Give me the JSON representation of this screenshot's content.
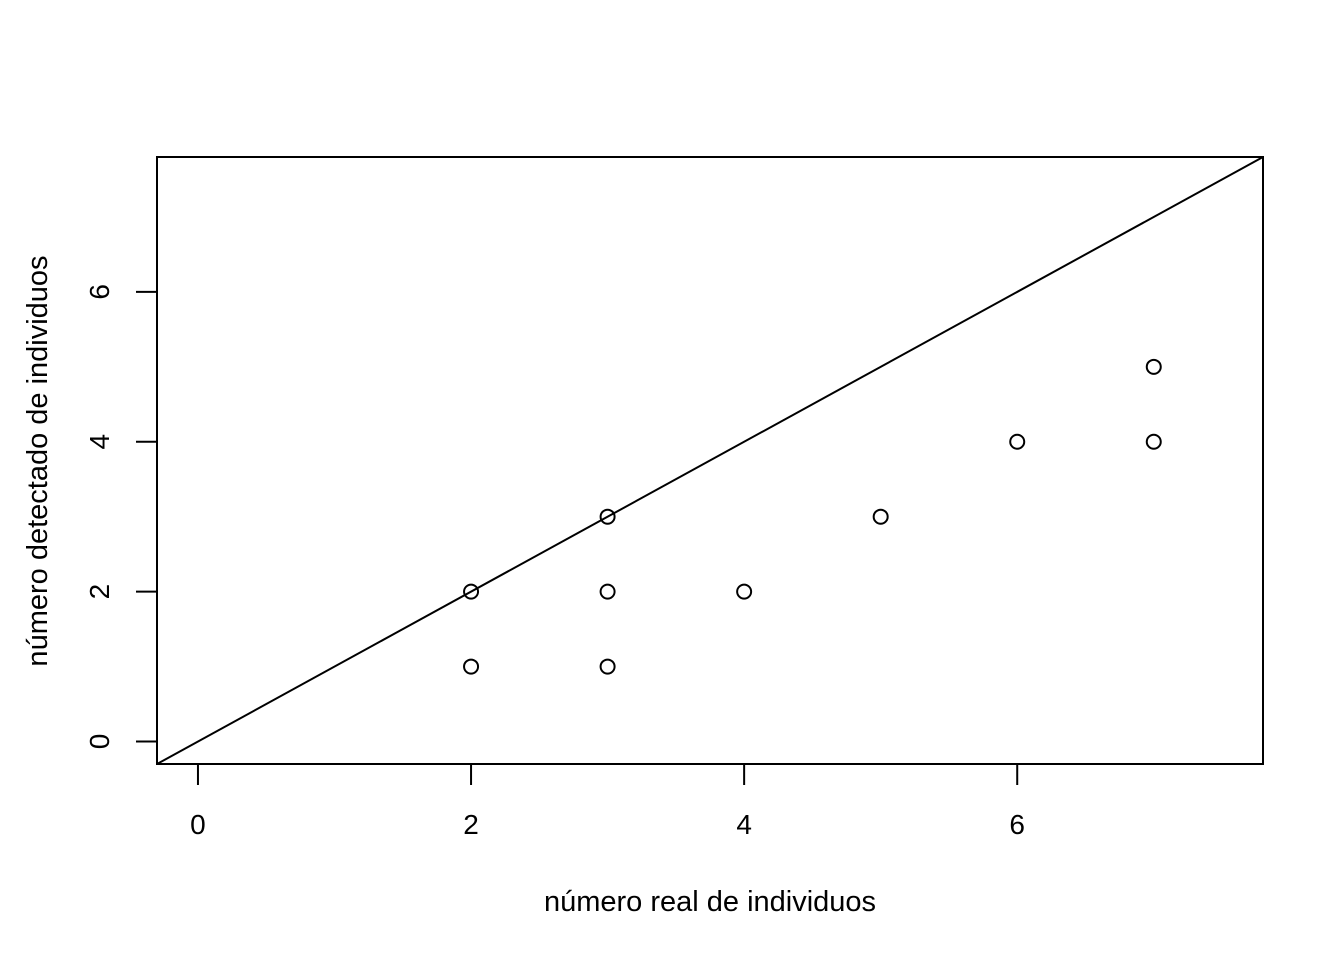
{
  "chart_data": {
    "type": "scatter",
    "title": "",
    "xlabel": "número real de individuos",
    "ylabel": "número detectado de individuos",
    "xlim": [
      -0.3,
      7.8
    ],
    "ylim": [
      -0.3,
      7.8
    ],
    "x_ticks": [
      0,
      2,
      4,
      6
    ],
    "y_ticks": [
      0,
      2,
      4,
      6
    ],
    "grid": false,
    "legend": "none",
    "reference_line": {
      "intercept": 0,
      "slope": 1
    },
    "marker": "open-circle",
    "color": "#000000",
    "points": [
      {
        "x": 2,
        "y": 1
      },
      {
        "x": 2,
        "y": 2
      },
      {
        "x": 3,
        "y": 1
      },
      {
        "x": 3,
        "y": 2
      },
      {
        "x": 3,
        "y": 3
      },
      {
        "x": 4,
        "y": 2
      },
      {
        "x": 5,
        "y": 3
      },
      {
        "x": 6,
        "y": 4
      },
      {
        "x": 7,
        "y": 4
      },
      {
        "x": 7,
        "y": 5
      }
    ]
  }
}
